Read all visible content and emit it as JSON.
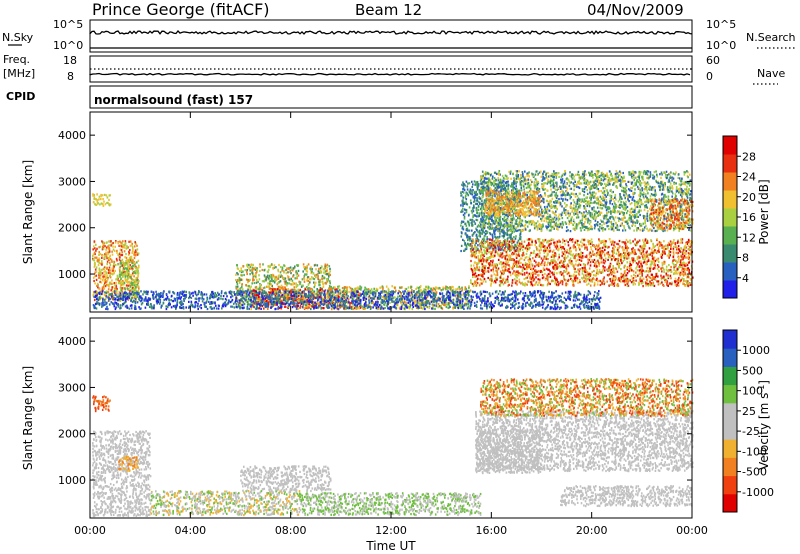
{
  "header": {
    "station": "Prince George (fitACF)",
    "beam": "Beam 12",
    "date": "04/Nov/2009"
  },
  "nsky_panel": {
    "left_label": "N.Sky",
    "right_label": "N.Search",
    "top_tick": "10^5",
    "bottom_tick": "10^0"
  },
  "freq_panel": {
    "left_label_1": "Freq.",
    "left_label_2": "[MHz]",
    "right_label": "Nave",
    "left_ticks": [
      "18",
      "8"
    ],
    "right_ticks": [
      "60",
      "0"
    ]
  },
  "cpid": {
    "label": "CPID",
    "mode": "normalsound (fast) 157"
  },
  "chart_data": [
    {
      "type": "heatmap",
      "title": "",
      "ylabel": "Slant Range [km]",
      "y_ticks": [
        "1000",
        "2000",
        "3000",
        "4000"
      ],
      "ylim": [
        180,
        4500
      ],
      "colorbar": {
        "label": "Power [dB]",
        "ticks": [
          "4",
          "8",
          "12",
          "16",
          "20",
          "24",
          "28"
        ],
        "colors": [
          "#2020e8",
          "#2860c0",
          "#3a8a70",
          "#58b050",
          "#a8d040",
          "#f0c030",
          "#f08020",
          "#e83010",
          "#e00000"
        ]
      }
    },
    {
      "type": "heatmap",
      "title": "",
      "ylabel": "Slant Range [km]",
      "y_ticks": [
        "1000",
        "2000",
        "3000",
        "4000"
      ],
      "ylim": [
        180,
        4500
      ],
      "colorbar": {
        "label": "Velocity [m s^-1]",
        "ticks": [
          "1000",
          "500",
          "100",
          "25",
          "-25",
          "-100",
          "-500",
          "-1000"
        ],
        "colors": [
          "#2030d0",
          "#2860c0",
          "#30a040",
          "#70c040",
          "#c0c0c0",
          "#c0c0c0",
          "#f0b030",
          "#f08020",
          "#f04010",
          "#e00000"
        ]
      }
    }
  ],
  "x_axis": {
    "label": "Time UT",
    "ticks": [
      "00:00",
      "04:00",
      "08:00",
      "12:00",
      "16:00",
      "20:00",
      "00:00"
    ]
  },
  "colors": {
    "frame": "#000000",
    "ground_scatter": "#c0c0c0"
  }
}
